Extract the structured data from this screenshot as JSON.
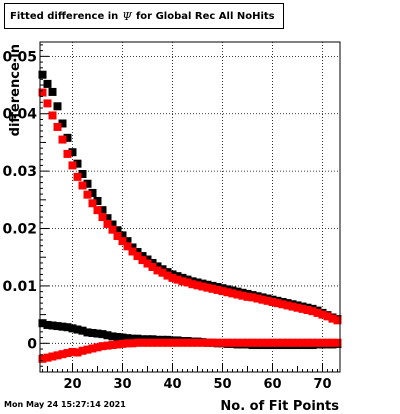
{
  "title": {
    "prefix": "Fitted difference in",
    "symbol": "Ψ",
    "suffix": "for Global Rec All NoHits"
  },
  "timestamp": "Mon May 24 15:27:14 2021",
  "chart_data": {
    "type": "scatter",
    "xlabel": "No. of Fit Points",
    "ylabel": "difference in",
    "xlim": [
      13.5,
      73.5
    ],
    "ylim": [
      -0.005,
      0.0525
    ],
    "x_ticks": [
      20,
      30,
      40,
      50,
      60,
      70
    ],
    "y_ticks": [
      0,
      0.01,
      0.02,
      0.03,
      0.04,
      0.05
    ],
    "y_tick_labels": [
      "0",
      "0.01",
      "0.02",
      "0.03",
      "0.04",
      "0.05"
    ],
    "grid": true,
    "marker": "square",
    "series": [
      {
        "color": "#000000",
        "x": [
          14,
          15,
          16,
          17,
          18,
          19,
          20,
          21,
          22,
          23,
          24,
          25,
          26,
          27,
          28,
          29,
          30,
          31,
          32,
          33,
          34,
          35,
          36,
          37,
          38,
          39,
          40,
          41,
          42,
          43,
          44,
          45,
          46,
          47,
          48,
          49,
          50,
          51,
          52,
          53,
          54,
          55,
          56,
          57,
          58,
          59,
          60,
          61,
          62,
          63,
          64,
          65,
          66,
          67,
          68,
          69,
          70,
          71,
          72,
          73
        ],
        "y": [
          0.0468,
          0.0452,
          0.0438,
          0.0413,
          0.0383,
          0.0358,
          0.0333,
          0.0313,
          0.0295,
          0.0278,
          0.0262,
          0.0248,
          0.0232,
          0.0218,
          0.0207,
          0.0197,
          0.0188,
          0.0178,
          0.0167,
          0.0159,
          0.0152,
          0.0146,
          0.014,
          0.0134,
          0.0129,
          0.0124,
          0.012,
          0.0117,
          0.0114,
          0.0111,
          0.0108,
          0.0106,
          0.0104,
          0.0102,
          0.01,
          0.0098,
          0.0096,
          0.0094,
          0.0092,
          0.009,
          0.0088,
          0.0086,
          0.0084,
          0.0082,
          0.008,
          0.0078,
          0.0076,
          0.0074,
          0.0072,
          0.007,
          0.0068,
          0.0066,
          0.0064,
          0.0062,
          0.006,
          0.0057,
          0.0053,
          0.0049,
          0.0045,
          0.0042
        ]
      },
      {
        "color": "#ff0000",
        "x": [
          14,
          15,
          16,
          17,
          18,
          19,
          20,
          21,
          22,
          23,
          24,
          25,
          26,
          27,
          28,
          29,
          30,
          31,
          32,
          33,
          34,
          35,
          36,
          37,
          38,
          39,
          40,
          41,
          42,
          43,
          44,
          45,
          46,
          47,
          48,
          49,
          50,
          51,
          52,
          53,
          54,
          55,
          56,
          57,
          58,
          59,
          60,
          61,
          62,
          63,
          64,
          65,
          66,
          67,
          68,
          69,
          70,
          71,
          72,
          73
        ],
        "y": [
          0.0437,
          0.0418,
          0.0397,
          0.0377,
          0.0355,
          0.033,
          0.031,
          0.029,
          0.0275,
          0.0259,
          0.0244,
          0.0232,
          0.022,
          0.0208,
          0.0198,
          0.0187,
          0.0178,
          0.0169,
          0.016,
          0.0152,
          0.0145,
          0.0139,
          0.0133,
          0.0127,
          0.0123,
          0.0118,
          0.0114,
          0.0111,
          0.0108,
          0.0106,
          0.0103,
          0.0101,
          0.0099,
          0.0097,
          0.0095,
          0.0093,
          0.0091,
          0.0089,
          0.0087,
          0.0085,
          0.0083,
          0.0081,
          0.008,
          0.0078,
          0.0076,
          0.0074,
          0.0072,
          0.007,
          0.0068,
          0.0066,
          0.0064,
          0.0062,
          0.006,
          0.0058,
          0.0056,
          0.0053,
          0.005,
          0.0047,
          0.0043,
          0.004
        ]
      },
      {
        "color": "#000000",
        "x": [
          14,
          15,
          16,
          17,
          18,
          19,
          20,
          21,
          22,
          23,
          24,
          25,
          26,
          27,
          28,
          29,
          30,
          31,
          32,
          33,
          34,
          35,
          36,
          37,
          38,
          39,
          40,
          41,
          42,
          43,
          44,
          45,
          46,
          47,
          48,
          49,
          50,
          51,
          52,
          53,
          54,
          55,
          56,
          57,
          58,
          59,
          60,
          61,
          62,
          63,
          64,
          65,
          66,
          67,
          68,
          69,
          70,
          71,
          72,
          73
        ],
        "y": [
          0.0035,
          0.0032,
          0.0031,
          0.003,
          0.0029,
          0.0028,
          0.0026,
          0.0024,
          0.0022,
          0.0019,
          0.0018,
          0.0017,
          0.0016,
          0.0014,
          0.0012,
          0.0011,
          0.001,
          0.0009,
          0.0008,
          0.0008,
          0.0007,
          0.0007,
          0.0007,
          0.0006,
          0.0006,
          0.0006,
          0.0005,
          0.0005,
          0.0004,
          0.0004,
          0.0003,
          0.0003,
          0.0002,
          0.0001,
          0.0001,
          0.0,
          0.0,
          -0.0001,
          -0.0001,
          -0.0002,
          -0.0002,
          -0.0002,
          -0.0003,
          -0.0003,
          -0.0003,
          -0.0003,
          -0.0003,
          -0.0003,
          -0.0003,
          -0.0003,
          -0.0003,
          -0.0003,
          -0.0003,
          -0.0003,
          -0.0003,
          -0.0002,
          -0.0002,
          -0.0002,
          -0.0002,
          -0.0001
        ]
      },
      {
        "color": "#ff0000",
        "x": [
          14,
          15,
          16,
          17,
          18,
          19,
          20,
          21,
          22,
          23,
          24,
          25,
          26,
          27,
          28,
          29,
          30,
          31,
          32,
          33,
          34,
          35,
          36,
          37,
          38,
          39,
          40,
          41,
          42,
          43,
          44,
          45,
          46,
          47,
          48,
          49,
          50,
          51,
          52,
          53,
          54,
          55,
          56,
          57,
          58,
          59,
          60,
          61,
          62,
          63,
          64,
          65,
          66,
          67,
          68,
          69,
          70,
          71,
          72,
          73
        ],
        "y": [
          -0.0027,
          -0.0025,
          -0.0023,
          -0.0021,
          -0.0019,
          -0.0017,
          -0.0015,
          -0.0016,
          -0.0013,
          -0.0011,
          -0.0009,
          -0.0007,
          -0.0005,
          -0.0004,
          -0.0003,
          -0.0002,
          -0.0001,
          0.0,
          0.0,
          0.0001,
          0.0001,
          0.0001,
          0.0001,
          0.0001,
          0.0001,
          0.0001,
          0.0001,
          0.0001,
          0.0001,
          0.0001,
          0.0001,
          0.0001,
          0.0001,
          0.0001,
          0.0001,
          0.0001,
          0.0001,
          0.0001,
          0.0001,
          0.0001,
          0.0001,
          0.0001,
          0.0001,
          0.0001,
          0.0001,
          0.0001,
          0.0001,
          0.0001,
          0.0001,
          0.0001,
          0.0001,
          0.0001,
          0.0001,
          0.0001,
          0.0001,
          0.0001,
          0.0001,
          0.0001,
          0.0001,
          0.0001
        ]
      }
    ]
  }
}
